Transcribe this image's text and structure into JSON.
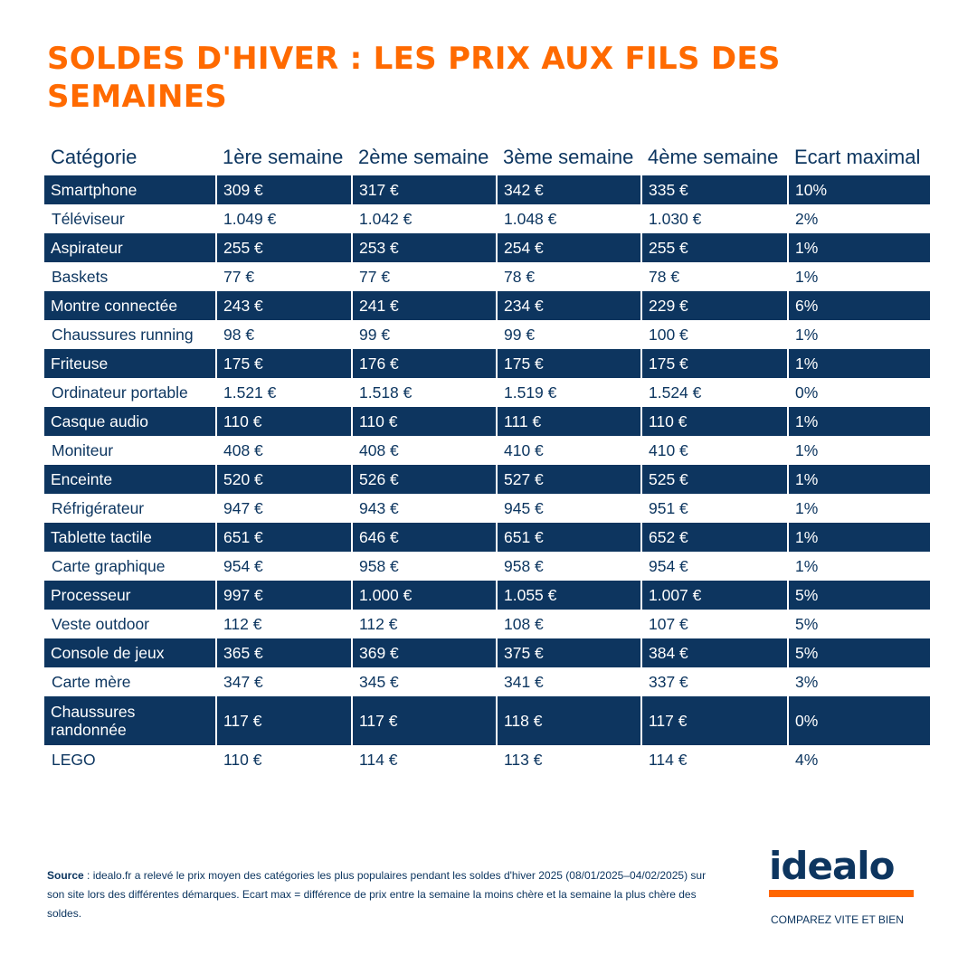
{
  "title": "SOLDES D'HIVER : LES PRIX AUX FILS DES SEMAINES",
  "headers": [
    "Catégorie",
    "1ère semaine",
    "2ème semaine",
    "3ème semaine",
    "4ème semaine",
    "Ecart maximal"
  ],
  "rows": [
    [
      "Smartphone",
      "309 €",
      "317 €",
      "342 €",
      "335 €",
      "10%"
    ],
    [
      "Téléviseur",
      "1.049 €",
      "1.042 €",
      "1.048 €",
      "1.030 €",
      "2%"
    ],
    [
      "Aspirateur",
      "255 €",
      "253 €",
      "254 €",
      "255 €",
      "1%"
    ],
    [
      "Baskets",
      "77 €",
      "77 €",
      "78 €",
      "78 €",
      "1%"
    ],
    [
      "Montre connectée",
      "243 €",
      "241 €",
      "234 €",
      "229 €",
      "6%"
    ],
    [
      "Chaussures running",
      "98 €",
      "99 €",
      "99 €",
      "100 €",
      "1%"
    ],
    [
      "Friteuse",
      "175 €",
      "176 €",
      "175 €",
      "175 €",
      "1%"
    ],
    [
      "Ordinateur portable",
      "1.521 €",
      "1.518 €",
      "1.519 €",
      "1.524 €",
      "0%"
    ],
    [
      "Casque audio",
      "110 €",
      "110 €",
      "111 €",
      "110 €",
      "1%"
    ],
    [
      "Moniteur",
      "408 €",
      "408 €",
      "410 €",
      "410 €",
      "1%"
    ],
    [
      "Enceinte",
      "520 €",
      "526 €",
      "527 €",
      "525 €",
      "1%"
    ],
    [
      "Réfrigérateur",
      "947 €",
      "943 €",
      "945 €",
      "951 €",
      "1%"
    ],
    [
      "Tablette tactile",
      "651 €",
      "646 €",
      "651 €",
      "652 €",
      "1%"
    ],
    [
      "Carte graphique",
      "954 €",
      "958 €",
      "958 €",
      "954 €",
      "1%"
    ],
    [
      "Processeur",
      "997 €",
      "1.000 €",
      "1.055 €",
      "1.007 €",
      "5%"
    ],
    [
      "Veste outdoor",
      "112 €",
      "112 €",
      "108 €",
      "107 €",
      "5%"
    ],
    [
      "Console de jeux",
      "365 €",
      "369 €",
      "375 €",
      "384 €",
      "5%"
    ],
    [
      "Carte mère",
      "347 €",
      "345 €",
      "341 €",
      "337 €",
      "3%"
    ],
    [
      "Chaussures randonnée",
      "117 €",
      "117 €",
      "118 €",
      "117 €",
      "0%"
    ],
    [
      "LEGO",
      "110 €",
      "114 €",
      "113 €",
      "114 €",
      "4%"
    ]
  ],
  "source": {
    "label": "Source",
    "text": " : idealo.fr a relevé le prix moyen des catégories les plus populaires pendant les soldes d'hiver 2025 (08/01/2025–04/02/2025) sur son site lors des différentes démarques. Ecart max = différence de prix entre la semaine la moins chère et la semaine la plus chère des soldes."
  },
  "logo": {
    "word": "idealo",
    "tagline": "COMPAREZ VITE ET BIEN"
  },
  "colors": {
    "accent": "#ff6600",
    "navy": "#0d355f"
  }
}
